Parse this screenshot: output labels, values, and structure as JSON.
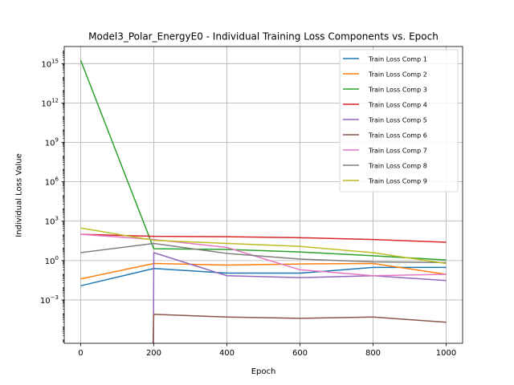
{
  "chart_data": {
    "type": "line",
    "title": "Model3_Polar_EnergyE0 - Individual Training Loss Components vs. Epoch",
    "xlabel": "Epoch",
    "ylabel": "Individual Loss Value",
    "x_scale": "linear",
    "y_scale": "log",
    "xlim": [
      -45,
      1045
    ],
    "ylim": [
      5e-07,
      2e+16
    ],
    "grid": true,
    "legend_position": "top-right",
    "x_ticks": [
      0,
      200,
      400,
      600,
      800,
      1000
    ],
    "x_tick_labels": [
      "0",
      "200",
      "400",
      "600",
      "800",
      "1000"
    ],
    "y_ticks": [
      0.001,
      1,
      1000,
      1000000,
      1000000000,
      1000000000000,
      1000000000000000
    ],
    "y_tick_labels": [
      {
        "base": "10",
        "exp": "−3"
      },
      {
        "base": "10",
        "exp": "0"
      },
      {
        "base": "10",
        "exp": "3"
      },
      {
        "base": "10",
        "exp": "6"
      },
      {
        "base": "10",
        "exp": "9"
      },
      {
        "base": "10",
        "exp": "12"
      },
      {
        "base": "10",
        "exp": "15"
      }
    ],
    "series": [
      {
        "name": "Train Loss Comp 1",
        "color": "#1f77b4",
        "x": [
          0,
          200,
          400,
          600,
          800,
          1000
        ],
        "y": [
          0.012,
          0.25,
          0.11,
          0.11,
          0.3,
          0.3
        ]
      },
      {
        "name": "Train Loss Comp 2",
        "color": "#ff7f0e",
        "x": [
          0,
          200,
          400,
          600,
          800,
          1000
        ],
        "y": [
          0.04,
          0.6,
          0.45,
          0.55,
          0.6,
          0.09
        ]
      },
      {
        "name": "Train Loss Comp 3",
        "color": "#2ca02c",
        "x": [
          0,
          200,
          400,
          600,
          800,
          1000
        ],
        "y": [
          1800000000000000,
          8,
          7,
          4.5,
          2.3,
          1.1
        ]
      },
      {
        "name": "Train Loss Comp 4",
        "color": "#d62728",
        "x": [
          0,
          200,
          400,
          600,
          800,
          1000
        ],
        "y": [
          100,
          70,
          65,
          55,
          40,
          25
        ]
      },
      {
        "name": "Train Loss Comp 5",
        "color": "#9467bd",
        "x": [
          199,
          200,
          400,
          600,
          800,
          1000
        ],
        "y": [
          5e-07,
          4,
          0.07,
          0.05,
          0.07,
          0.03
        ]
      },
      {
        "name": "Train Loss Comp 6",
        "color": "#8c564b",
        "x": [
          198,
          200,
          400,
          600,
          800,
          1000
        ],
        "y": [
          5e-07,
          8e-05,
          5e-05,
          4e-05,
          5e-05,
          2e-05
        ]
      },
      {
        "name": "Train Loss Comp 7",
        "color": "#e377c2",
        "x": [
          0,
          200,
          400,
          600,
          800,
          1000
        ],
        "y": [
          100,
          40,
          10,
          0.2,
          0.07,
          0.09
        ]
      },
      {
        "name": "Train Loss Comp 8",
        "color": "#7f7f7f",
        "x": [
          0,
          200,
          400,
          600,
          800,
          1000
        ],
        "y": [
          4,
          20,
          3.5,
          1.3,
          0.8,
          0.7
        ]
      },
      {
        "name": "Train Loss Comp 9",
        "color": "#bcbd22",
        "x": [
          0,
          200,
          400,
          600,
          800,
          1000
        ],
        "y": [
          300,
          35,
          20,
          12,
          4,
          0.6
        ]
      }
    ]
  }
}
